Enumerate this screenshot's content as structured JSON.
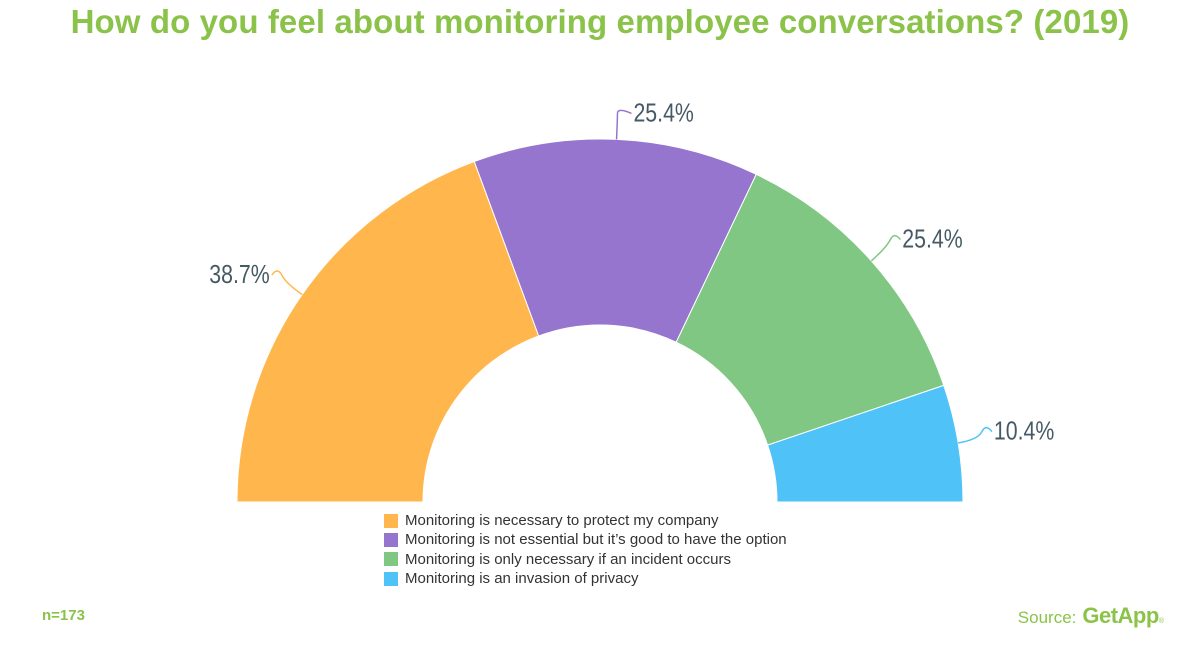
{
  "title": "How do you feel about monitoring employee conversations? (2019)",
  "chart_data": {
    "type": "pie",
    "subtype": "semi-donut",
    "title": "How do you feel about monitoring employee conversations? (2019)",
    "categories": [
      "Monitoring is necessary to protect my company",
      "Monitoring is not essential but it’s good to have the option",
      "Monitoring is only necessary if an incident occurs",
      "Monitoring is an invasion of privacy"
    ],
    "values": [
      38.7,
      25.4,
      25.4,
      10.4
    ],
    "value_labels": [
      "38.7%",
      "25.4%",
      "25.4%",
      "10.4%"
    ],
    "colors": [
      "#ffb74d",
      "#9575cd",
      "#81c784",
      "#4fc3f7"
    ],
    "legend_position": "bottom-center"
  },
  "footer": {
    "sample_size": "n=173",
    "source_label": "Source:",
    "brand": "GetApp",
    "brand_mark": "®"
  }
}
